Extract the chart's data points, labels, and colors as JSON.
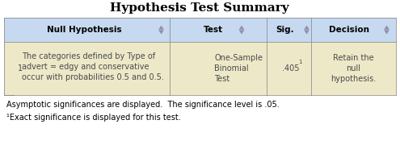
{
  "title": "Hypothesis Test Summary",
  "header_labels": [
    "Null Hypothesis",
    "Test",
    "Sig.",
    "Decision"
  ],
  "row_number": "1",
  "col1_text": "The categories defined by Type of\nadvert = edgy and conservative\noccur with probabilities 0.5 and 0.5.",
  "col2_text": "One-Sample\nBinomial\nTest",
  "col3_text": ".405",
  "col3_superscript": "1",
  "col4_text": "Retain the\nnull\nhypothesis.",
  "footer1": "Asymptotic significances are displayed.  The significance level is .05.",
  "footer2": "¹Exact significance is displayed for this test.",
  "bg_header": "#c6d9f0",
  "bg_row": "#ede8c8",
  "bg_left_strip": "#8db4e2",
  "border_color": "#808080",
  "text_color_header": "#000000",
  "text_color_cell": "#4a4a4a",
  "title_fontsize": 11,
  "header_fontsize": 7.5,
  "cell_fontsize": 7,
  "footer_fontsize": 7,
  "arrow_color": "#9090a8"
}
